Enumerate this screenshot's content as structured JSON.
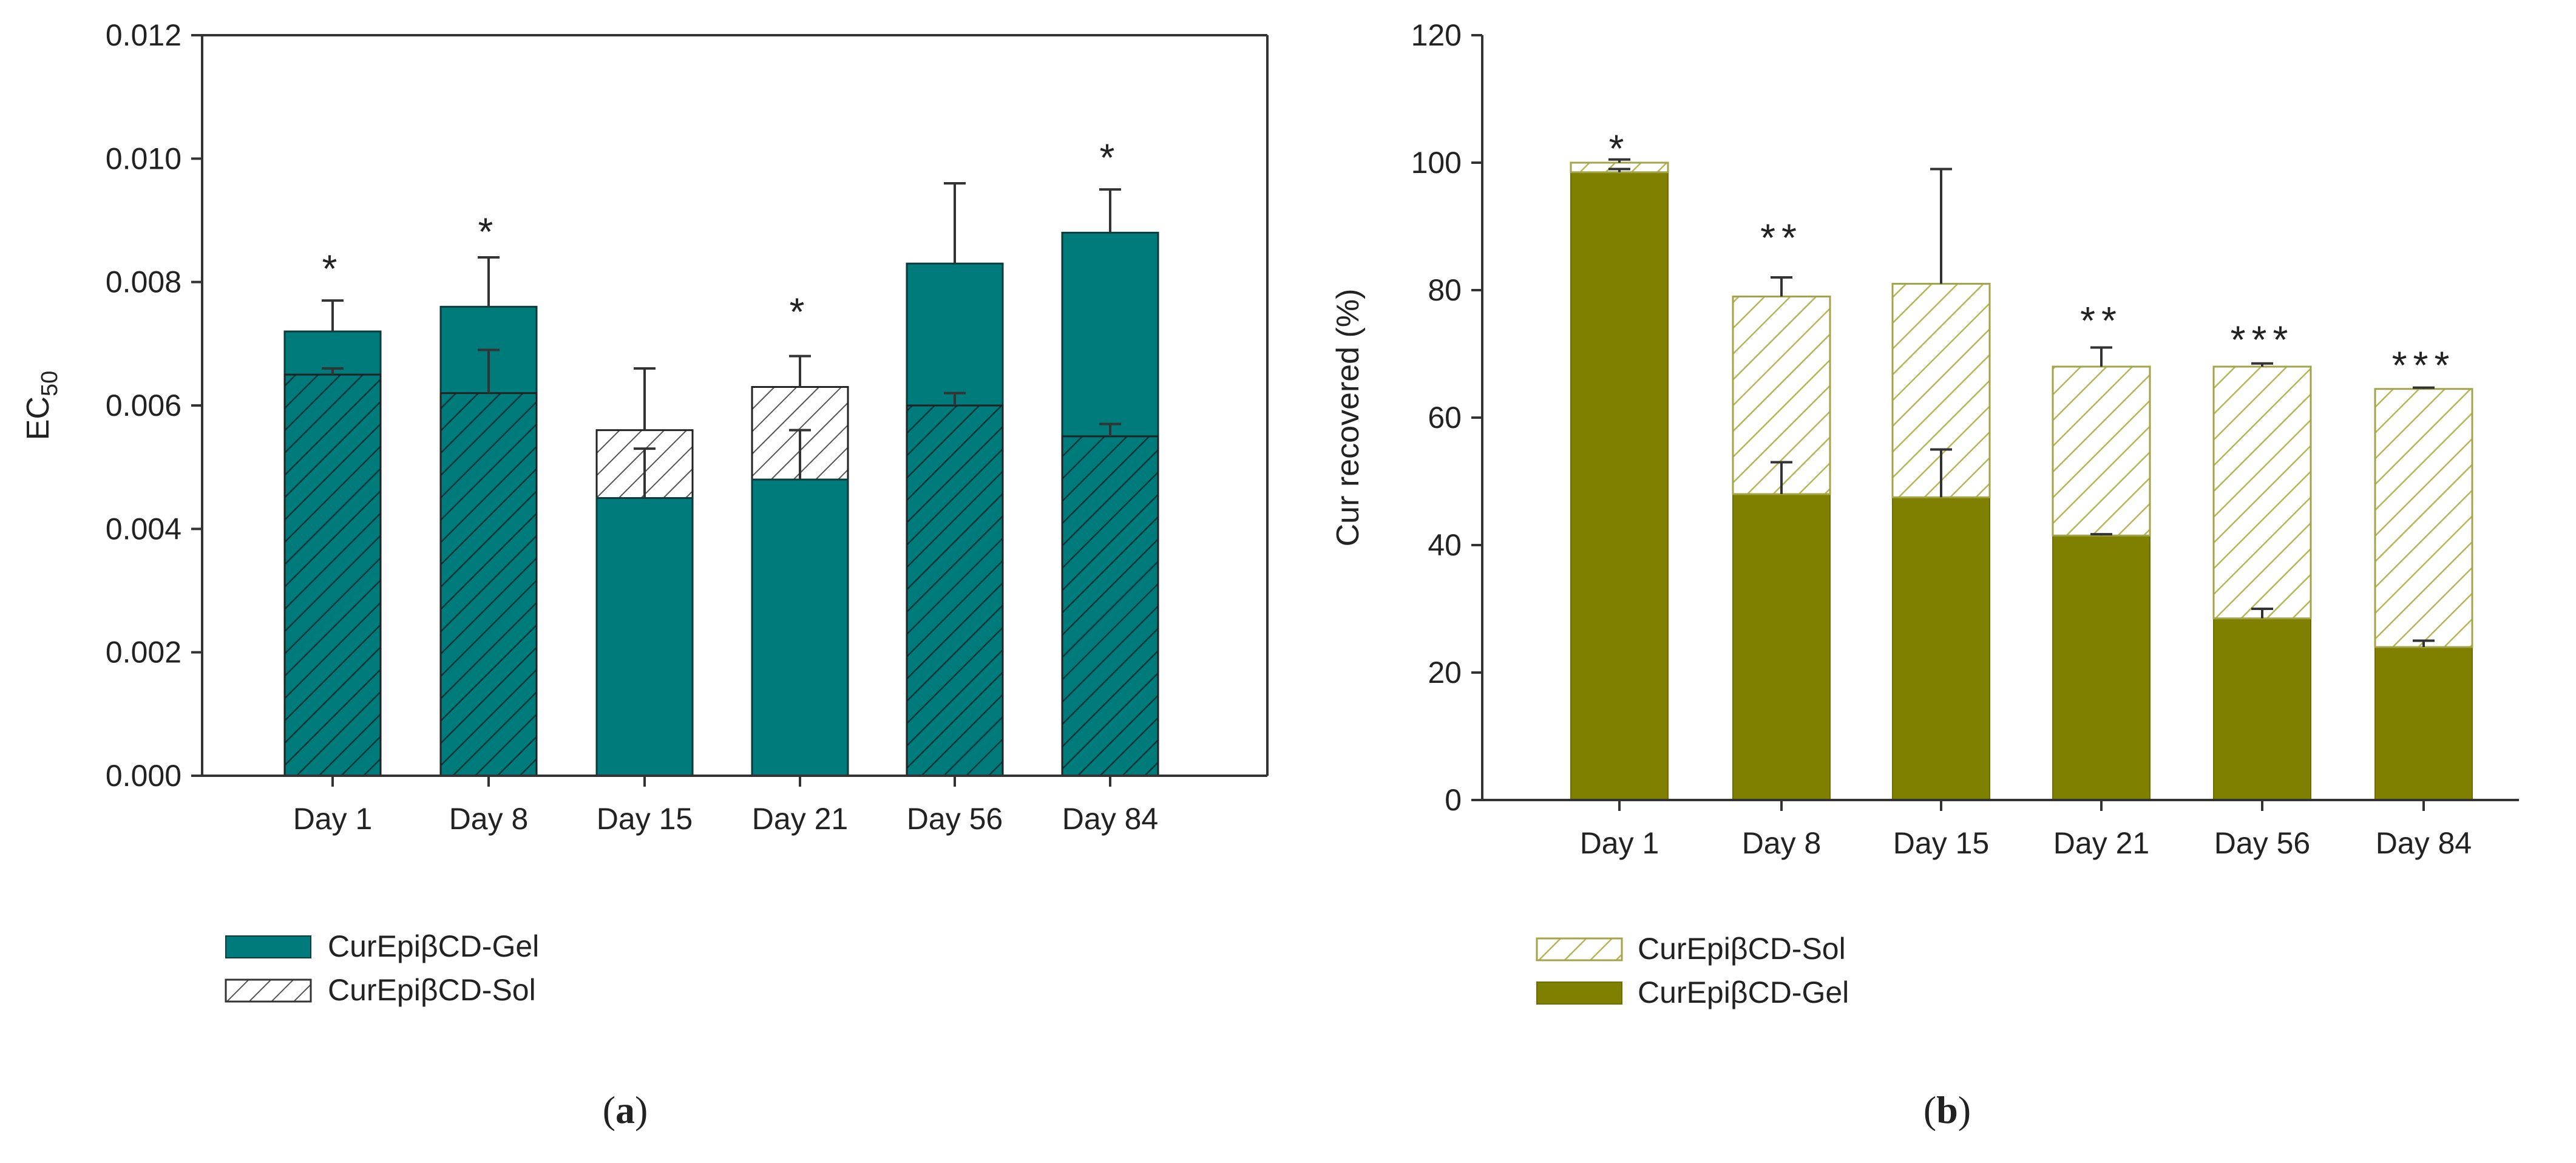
{
  "chart_data": [
    {
      "id": "a",
      "caption_letter": "a",
      "type": "bar",
      "stacked": false,
      "overlay": true,
      "ylabel_base": "EC",
      "ylabel_sub": "50",
      "ylim": [
        0,
        0.012
      ],
      "yticks": [
        "0.000",
        "0.002",
        "0.004",
        "0.006",
        "0.008",
        "0.010",
        "0.012"
      ],
      "categories": [
        "Day 1",
        "Day 8",
        "Day 15",
        "Day 21",
        "Day 56",
        "Day 84"
      ],
      "series": [
        {
          "name": "CurEpiβCD-Gel",
          "style": "solid",
          "values": [
            0.0072,
            0.0076,
            0.0045,
            0.0048,
            0.0083,
            0.0088
          ],
          "errors": [
            0.0005,
            0.0008,
            0.0008,
            0.0008,
            0.0013,
            0.0007
          ]
        },
        {
          "name": "CurEpiβCD-Sol",
          "style": "hatched",
          "values": [
            0.0065,
            0.0062,
            0.0056,
            0.0063,
            0.006,
            0.0055
          ],
          "errors": [
            0.0001,
            0.0007,
            0.001,
            0.0005,
            0.0002,
            0.0002
          ]
        }
      ],
      "annotations": [
        "*",
        "*",
        "",
        "*",
        "",
        "*"
      ],
      "annotation_values": [
        0.0082,
        0.0088,
        null,
        0.0075,
        null,
        0.01
      ],
      "legend_order": [
        "CurEpiβCD-Gel",
        "CurEpiβCD-Sol"
      ],
      "legend": [
        "CurEpiβCD-Gel",
        "CurEpiβCD-Sol"
      ],
      "colors": {
        "bar": "#007b7b",
        "edge": "#0d3b3b",
        "hatch": "#003838",
        "error": "#333333"
      }
    },
    {
      "id": "b",
      "caption_letter": "b",
      "type": "bar",
      "stacked": true,
      "ylabel": "Cur recovered (%)",
      "ylim": [
        0,
        120
      ],
      "yticks": [
        "0",
        "20",
        "40",
        "60",
        "80",
        "100",
        "120"
      ],
      "categories": [
        "Day 1",
        "Day 8",
        "Day 15",
        "Day 21",
        "Day 56",
        "Day 84"
      ],
      "series": [
        {
          "name": "CurEpiβCD-Gel",
          "style": "solid",
          "values": [
            98.5,
            48,
            47.5,
            41.5,
            28.5,
            24
          ],
          "errors": [
            0.5,
            5,
            7.5,
            0.2,
            1.5,
            1
          ]
        },
        {
          "name": "CurEpiβCD-Sol",
          "style": "hatched",
          "values": [
            1.5,
            31,
            33.5,
            26.5,
            39.5,
            40.5
          ],
          "errors": [
            0.5,
            3,
            18,
            3,
            0.5,
            0.2
          ]
        }
      ],
      "annotations": [
        "*",
        "**",
        "",
        "**",
        "***",
        "***"
      ],
      "annotation_values": [
        103,
        89,
        null,
        76,
        73,
        69
      ],
      "legend_order": [
        "CurEpiβCD-Sol",
        "CurEpiβCD-Gel"
      ],
      "legend": [
        "CurEpiβCD-Sol",
        "CurEpiβCD-Gel"
      ],
      "colors": {
        "bar": "#808000",
        "edge": "#6e6e00",
        "hatch": "#b5b55a",
        "error": "#333333"
      }
    }
  ]
}
